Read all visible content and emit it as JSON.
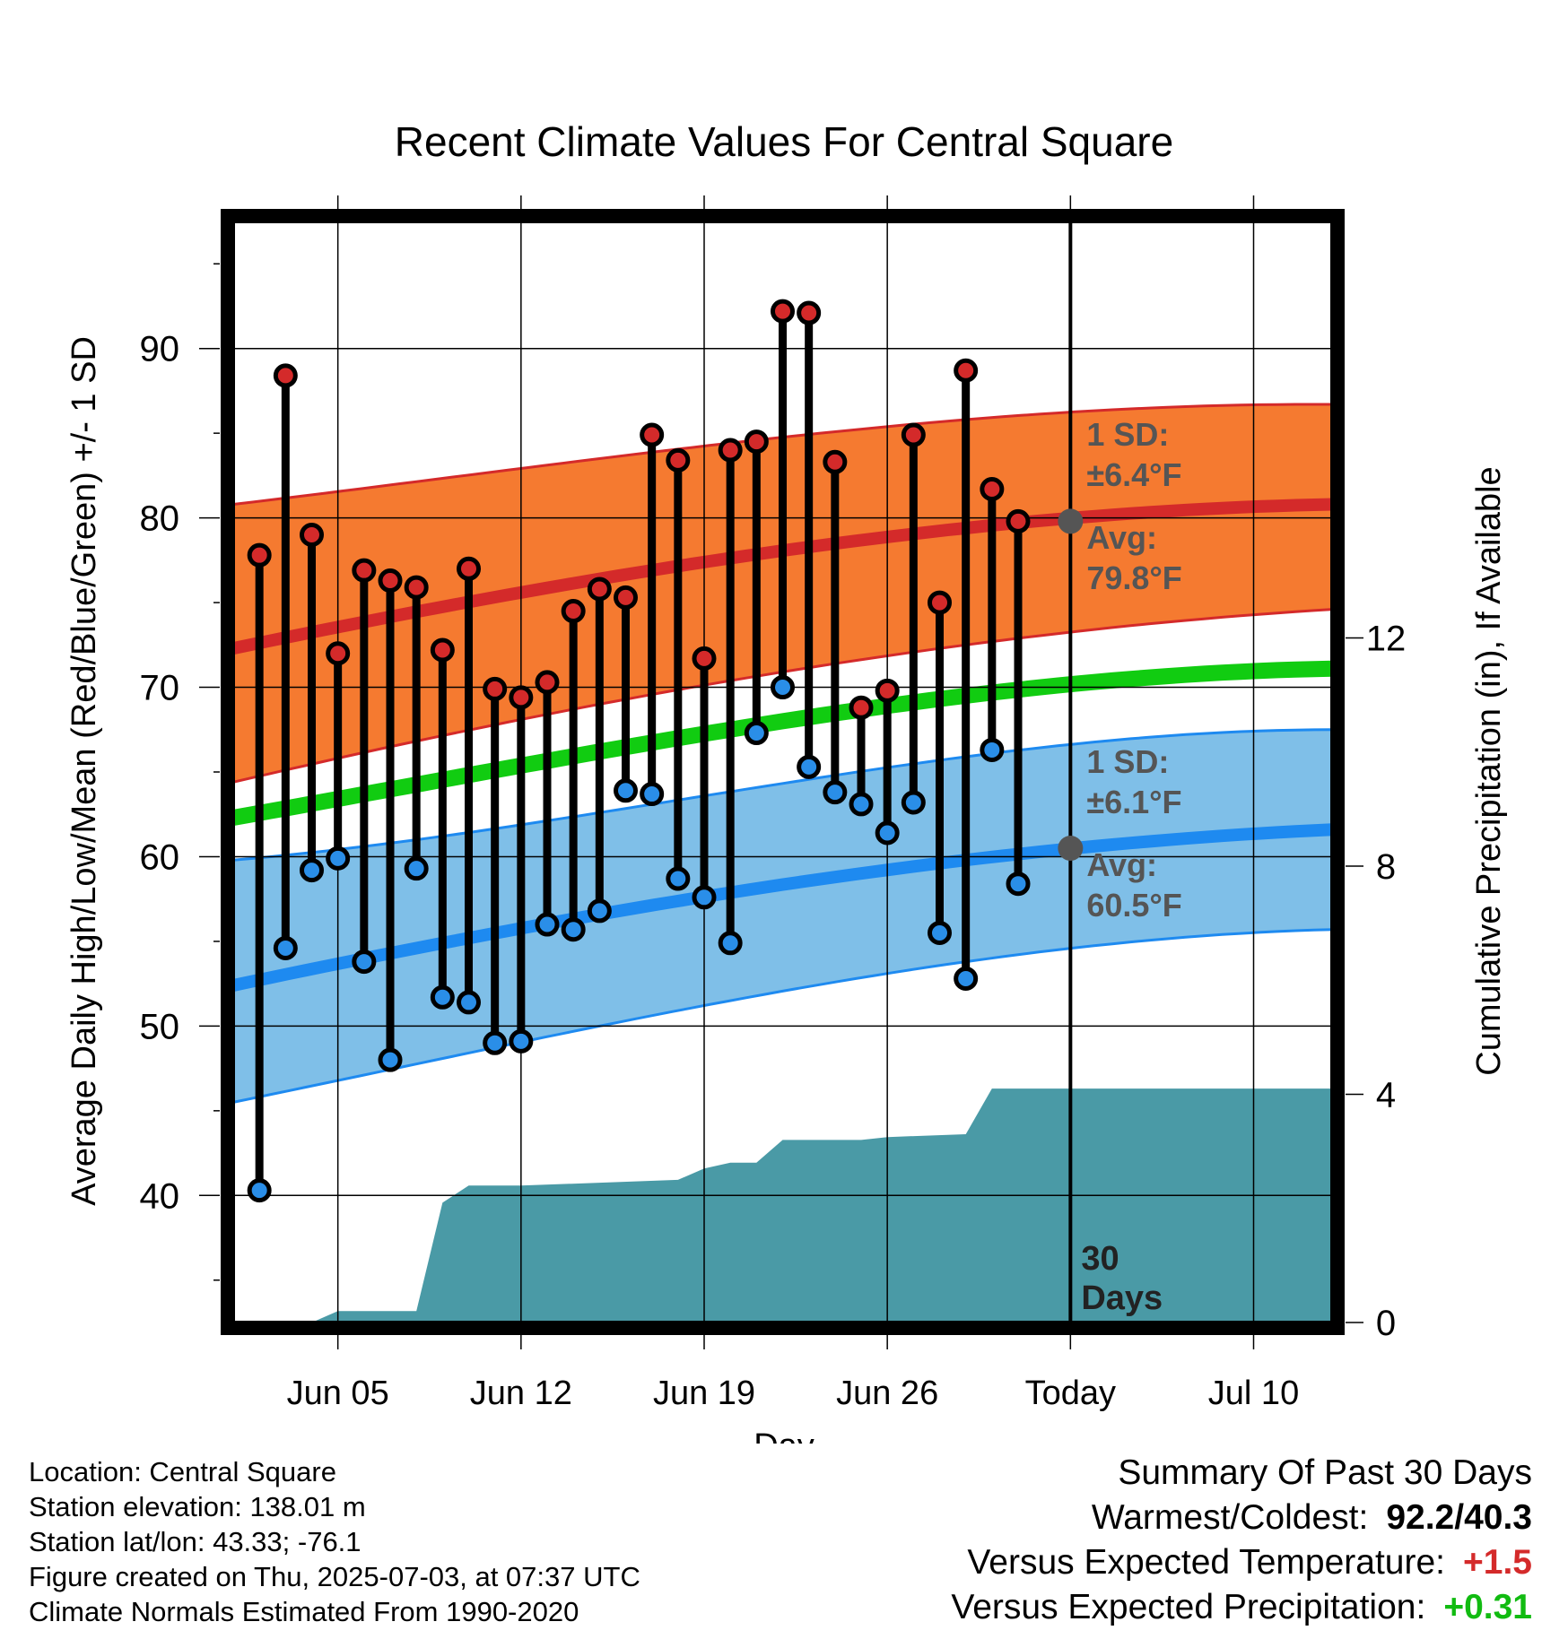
{
  "chart_data": {
    "type": "line",
    "title": "Recent Climate Values For Central Square",
    "xlabel": "Day",
    "ylabel": "Average Daily High/Low/Mean (Red/Blue/Green) +/- 1 SD",
    "y2label": "Cumulative Precipitation (in), If Available",
    "xlim": [
      "2025-06-01",
      "2025-07-13"
    ],
    "ylim": [
      32.5,
      97.5
    ],
    "y2lim": [
      0,
      19.3
    ],
    "x_ticks": [
      {
        "date": "2025-06-05",
        "label": "Jun 05"
      },
      {
        "date": "2025-06-12",
        "label": "Jun 12"
      },
      {
        "date": "2025-06-19",
        "label": "Jun 19"
      },
      {
        "date": "2025-06-26",
        "label": "Jun 26"
      },
      {
        "date": "2025-07-03",
        "label": "Today"
      },
      {
        "date": "2025-07-10",
        "label": "Jul 10"
      }
    ],
    "y_ticks": [
      40,
      50,
      60,
      70,
      80,
      90
    ],
    "y2_ticks": [
      0,
      4,
      8,
      12
    ],
    "today": "2025-07-03",
    "today_label": [
      "30",
      "Days"
    ],
    "grid": true,
    "observed": {
      "dates": [
        "2025-06-02",
        "2025-06-03",
        "2025-06-04",
        "2025-06-05",
        "2025-06-06",
        "2025-06-07",
        "2025-06-08",
        "2025-06-09",
        "2025-06-10",
        "2025-06-11",
        "2025-06-12",
        "2025-06-13",
        "2025-06-14",
        "2025-06-15",
        "2025-06-16",
        "2025-06-17",
        "2025-06-18",
        "2025-06-19",
        "2025-06-20",
        "2025-06-21",
        "2025-06-22",
        "2025-06-23",
        "2025-06-24",
        "2025-06-25",
        "2025-06-26",
        "2025-06-27",
        "2025-06-28",
        "2025-06-29",
        "2025-06-30",
        "2025-07-01",
        "2025-07-02"
      ],
      "high": [
        77.8,
        88.4,
        79.0,
        72.0,
        76.9,
        76.3,
        75.9,
        72.2,
        77.0,
        69.9,
        69.4,
        70.3,
        74.5,
        75.8,
        75.3,
        84.9,
        83.4,
        71.7,
        84.0,
        84.5,
        92.2,
        92.1,
        83.3,
        68.8,
        69.8,
        84.9,
        75.0,
        88.7,
        81.7,
        79.8,
        null
      ],
      "low": [
        40.3,
        54.6,
        59.2,
        59.9,
        53.8,
        48.0,
        59.3,
        51.7,
        51.4,
        49.0,
        49.1,
        56.0,
        55.7,
        56.8,
        63.9,
        63.7,
        58.7,
        57.6,
        54.9,
        67.3,
        70.0,
        65.3,
        63.8,
        63.1,
        61.4,
        63.2,
        55.5,
        52.8,
        66.3,
        58.4,
        null
      ]
    },
    "normals": {
      "dates": [
        "2025-06-01",
        "2025-06-15",
        "2025-06-29",
        "2025-07-13"
      ],
      "high_avg": [
        72.3,
        76.4,
        79.4,
        80.8
      ],
      "high_upper": [
        80.8,
        83.5,
        85.8,
        86.7
      ],
      "high_lower": [
        64.4,
        69.0,
        72.5,
        74.6
      ],
      "mean_avg": [
        62.3,
        66.2,
        69.5,
        71.1
      ],
      "low_avg": [
        52.4,
        56.6,
        59.8,
        61.6
      ],
      "low_upper": [
        59.8,
        62.6,
        65.9,
        67.5
      ],
      "low_lower": [
        45.5,
        50.0,
        53.8,
        55.7
      ]
    },
    "annotations": {
      "high_sd": [
        "1 SD:",
        "±6.4°F"
      ],
      "high_avg": [
        "Avg:",
        "79.8°F"
      ],
      "low_sd": [
        "1 SD:",
        "±6.1°F"
      ],
      "low_avg": [
        "Avg:",
        "60.5°F"
      ],
      "high_today_value": 79.8,
      "low_today_value": 60.5
    },
    "precipitation": {
      "dates": [
        "2025-06-04",
        "2025-06-05",
        "2025-06-07",
        "2025-06-08",
        "2025-06-09",
        "2025-06-10",
        "2025-06-12",
        "2025-06-15",
        "2025-06-18",
        "2025-06-19",
        "2025-06-20",
        "2025-06-21",
        "2025-06-22",
        "2025-06-25",
        "2025-06-26",
        "2025-06-29",
        "2025-06-30",
        "2025-07-03",
        "2025-07-13"
      ],
      "cumulative": [
        0.0,
        0.2,
        0.2,
        0.2,
        2.1,
        2.4,
        2.4,
        2.45,
        2.5,
        2.7,
        2.8,
        2.8,
        3.2,
        3.2,
        3.25,
        3.3,
        4.1,
        4.1,
        4.1
      ]
    },
    "colors": {
      "high_band": "#f57a30",
      "high_line": "#d42a2a",
      "low_band": "#7fbfe8",
      "low_line": "#1e8af0",
      "mean_line": "#11cc11",
      "precip": "#4a9aa6",
      "high_marker": "#d42a2a",
      "low_marker": "#2a8ee8",
      "annotation": "#555555"
    }
  },
  "footer": {
    "location": "Location: Central Square",
    "elevation": "Station elevation: 138.01 m",
    "latlon": "Station lat/lon: 43.33; -76.1",
    "created": "Figure created on Thu, 2025-07-03, at 07:37 UTC",
    "normals": "Climate Normals Estimated From 1990-2020"
  },
  "summary": {
    "heading": "Summary Of Past 30 Days",
    "warm_cold_label": "Warmest/Coldest:",
    "warm_cold_value": "92.2/40.3",
    "temp_label": "Versus Expected Temperature:",
    "temp_value": "+1.5",
    "precip_label": "Versus Expected Precipitation:",
    "precip_value": "+0.31",
    "temp_color": "#d42a2a",
    "precip_color": "#11bb11"
  }
}
